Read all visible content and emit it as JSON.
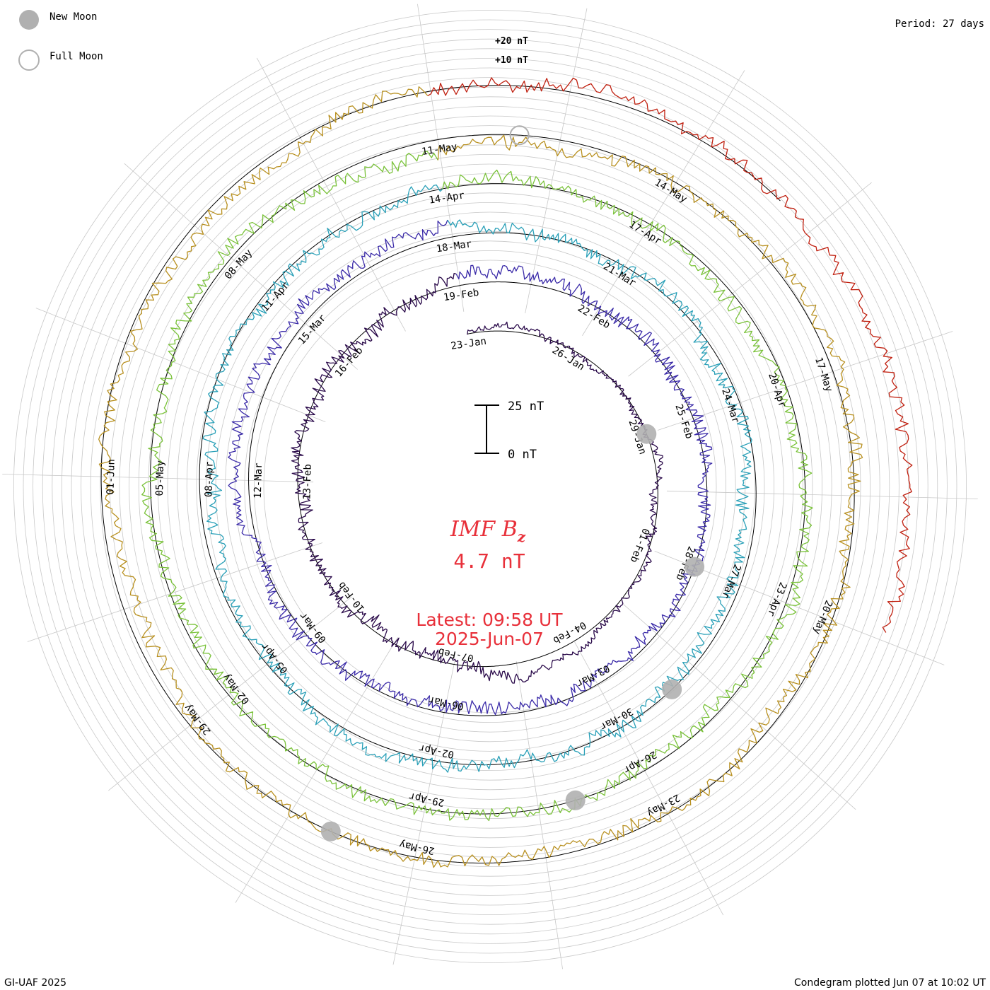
{
  "legend": {
    "new_moon_label": "New Moon",
    "full_moon_label": "Full Moon"
  },
  "period_label": "Period: 27 days",
  "scale_ring_labels": [
    "+20 nT",
    "+10 nT"
  ],
  "scale_bar": {
    "top_label": "25 nT",
    "bottom_label": "0 nT"
  },
  "center": {
    "quantity": "IMF B",
    "subscript": "z",
    "value": "4.7 nT",
    "latest_time": "Latest: 09:58 UT",
    "latest_date": "2025-Jun-07"
  },
  "footer": {
    "credit": "GI-UAF 2025",
    "plotted": "Condegram plotted Jun 07 at 10:02 UT"
  },
  "chart_data": {
    "type": "line",
    "title": "IMF Bz",
    "current_value_nT": 4.7,
    "units": "nT",
    "period_days": 27,
    "ring_scale_nT": [
      10,
      20
    ],
    "scale_bar_nT": [
      0,
      25
    ],
    "rotation_start_labels": [
      "23-Jan",
      "19-Feb",
      "18-Mar",
      "14-Apr",
      "11-May"
    ],
    "date_labels": [
      [
        "23-Jan",
        "26-Jan",
        "29-Jan",
        "01-Feb",
        "04-Feb",
        "07-Feb",
        "10-Feb",
        "13-Feb",
        "16-Feb"
      ],
      [
        "19-Feb",
        "22-Feb",
        "25-Feb",
        "28-Feb",
        "03-Mar",
        "06-Mar",
        "09-Mar",
        "12-Mar",
        "15-Mar"
      ],
      [
        "18-Mar",
        "21-Mar",
        "24-Mar",
        "27-Mar",
        "30-Mar",
        "02-Apr",
        "05-Apr",
        "08-Apr",
        "11-Apr"
      ],
      [
        "14-Apr",
        "17-Apr",
        "20-Apr",
        "23-Apr",
        "26-Apr",
        "29-Apr",
        "02-May",
        "05-May",
        "08-May"
      ],
      [
        "11-May",
        "14-May",
        "17-May",
        "20-May",
        "23-May",
        "26-May",
        "29-May",
        "01-Jun"
      ]
    ],
    "series_colors": [
      "#2a0a4a",
      "#3a2aa8",
      "#2aa0b8",
      "#7ac23a",
      "#b89020",
      "#c02010"
    ],
    "new_moons": [
      "29-Jan",
      "28-Feb",
      "29-Mar",
      "27-Apr",
      "27-May"
    ],
    "full_moons": [
      "12-May"
    ],
    "grid": true
  }
}
